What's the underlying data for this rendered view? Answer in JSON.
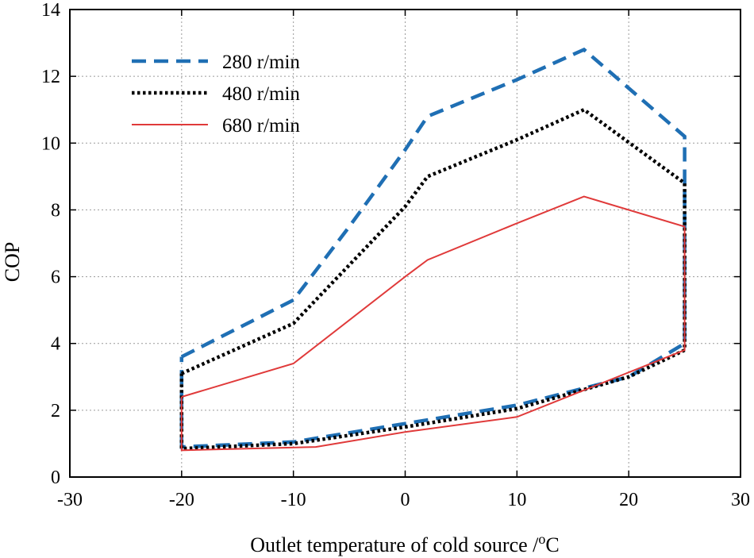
{
  "chart_data": {
    "type": "line",
    "title": "",
    "xlabel": "Outlet temperature of cold source /",
    "xlabel_unit_sup": "o",
    "xlabel_unit": "C",
    "ylabel": "COP",
    "xlim": [
      -30,
      30
    ],
    "ylim": [
      0,
      14
    ],
    "xticks": [
      -30,
      -20,
      -10,
      0,
      10,
      20,
      30
    ],
    "yticks": [
      0,
      2,
      4,
      6,
      8,
      10,
      12,
      14
    ],
    "xtick_labels": [
      "-30",
      "-20",
      "-10",
      "0",
      "10",
      "20",
      "30"
    ],
    "ytick_labels": [
      "0",
      "2",
      "4",
      "6",
      "8",
      "10",
      "12",
      "14"
    ],
    "grid": true,
    "legend_position": "top-left",
    "series": [
      {
        "name": "280 r/min",
        "color": "#1f6fb4",
        "style": "dashed",
        "x": [
          -20,
          -10,
          -5,
          0,
          2,
          10,
          16,
          25,
          25,
          20,
          10,
          0,
          -10,
          -20,
          -20
        ],
        "y": [
          3.6,
          5.3,
          7.5,
          9.8,
          10.8,
          11.9,
          12.8,
          10.2,
          4.0,
          3.0,
          2.15,
          1.6,
          1.05,
          0.9,
          3.6
        ]
      },
      {
        "name": "480 r/min",
        "color": "#000000",
        "style": "dotted",
        "x": [
          -20,
          -10,
          0,
          2,
          10,
          16,
          25,
          25,
          20,
          10,
          0,
          -10,
          -20,
          -20
        ],
        "y": [
          3.1,
          4.6,
          8.1,
          9.0,
          10.1,
          11.0,
          8.8,
          3.8,
          3.0,
          2.05,
          1.5,
          1.0,
          0.85,
          3.1
        ]
      },
      {
        "name": "680 r/min",
        "color": "#e03a3a",
        "style": "solid",
        "x": [
          -20,
          -10,
          0,
          2,
          10,
          16,
          25,
          25,
          16,
          10,
          0,
          -8,
          -20,
          -20
        ],
        "y": [
          2.4,
          3.4,
          6.0,
          6.5,
          7.6,
          8.4,
          7.5,
          3.8,
          2.6,
          1.8,
          1.35,
          0.9,
          0.8,
          2.4
        ]
      }
    ]
  }
}
